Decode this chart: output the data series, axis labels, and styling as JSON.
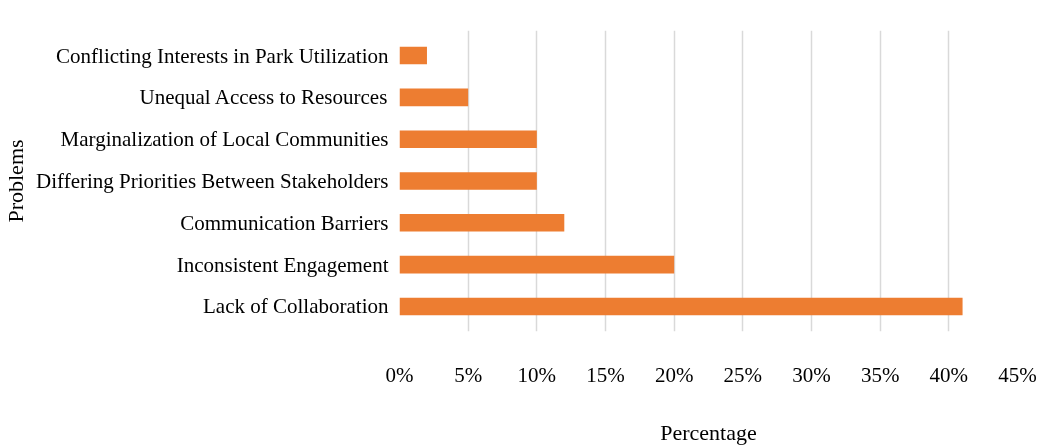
{
  "chart_data": {
    "type": "bar",
    "orientation": "horizontal",
    "xlabel": "Percentage",
    "ylabel": "Problems",
    "categories": [
      "Conflicting Interests in Park Utilization",
      "Unequal Access to Resources",
      "Marginalization of Local Communities",
      "Differing Priorities Between Stakeholders",
      "Communication Barriers",
      "Inconsistent Engagement",
      "Lack of Collaboration"
    ],
    "values": [
      2,
      5,
      10,
      10,
      12,
      20,
      41
    ],
    "color": "#ed7d31",
    "xlim": [
      0,
      45
    ],
    "xticks": [
      {
        "value": 0,
        "label": "0%"
      },
      {
        "value": 5,
        "label": "5%"
      },
      {
        "value": 10,
        "label": "10%"
      },
      {
        "value": 15,
        "label": "15%"
      },
      {
        "value": 20,
        "label": "20%"
      },
      {
        "value": 25,
        "label": "25%"
      },
      {
        "value": 30,
        "label": "30%"
      },
      {
        "value": 35,
        "label": "35%"
      },
      {
        "value": 40,
        "label": "40%"
      },
      {
        "value": 45,
        "label": "45%"
      }
    ],
    "grid": "x"
  }
}
